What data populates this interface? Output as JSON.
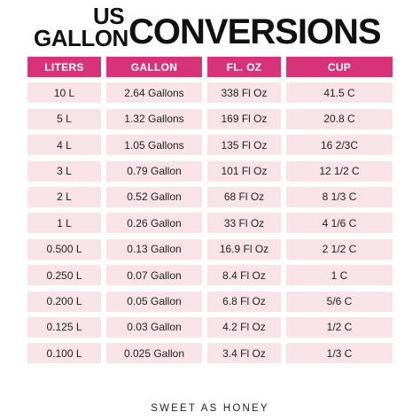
{
  "title": {
    "line_us": "US",
    "line_gallon": "GALLON",
    "line_conversions": "CONVERSIONS"
  },
  "colors": {
    "header_bg": "#d6337a",
    "row_bg": "#f7e3e8"
  },
  "table": {
    "headers": [
      "LITERS",
      "GALLON",
      "FL. OZ",
      "CUP"
    ],
    "rows": [
      [
        "10 L",
        "2.64 Gallons",
        "338 Fl Oz",
        "41.5 C"
      ],
      [
        "5 L",
        "1.32 Gallons",
        "169 Fl Oz",
        "20.8 C"
      ],
      [
        "4 L",
        "1.05 Gallons",
        "135 Fl Oz",
        "16 2/3C"
      ],
      [
        "3 L",
        "0.79 Gallon",
        "101 Fl Oz",
        "12 1/2 C"
      ],
      [
        "2 L",
        "0.52 Gallon",
        "68 Fl Oz",
        "8 1/3 C"
      ],
      [
        "1 L",
        "0.26 Gallon",
        "33 Fl Oz",
        "4 1/6 C"
      ],
      [
        "0.500 L",
        "0.13 Gallon",
        "16.9 Fl Oz",
        "2 1/2 C"
      ],
      [
        "0.250 L",
        "0.07 Gallon",
        "8.4 Fl Oz",
        "1 C"
      ],
      [
        "0.200 L",
        "0.05 Gallon",
        "6.8 Fl Oz",
        "5/6 C"
      ],
      [
        "0.125 L",
        "0.03 Gallon",
        "4.2 Fl Oz",
        "1/2 C"
      ],
      [
        "0.100 L",
        "0.025 Gallon",
        "3.4 Fl Oz",
        "1/3 C"
      ]
    ]
  },
  "footer": "SWEET AS HONEY"
}
